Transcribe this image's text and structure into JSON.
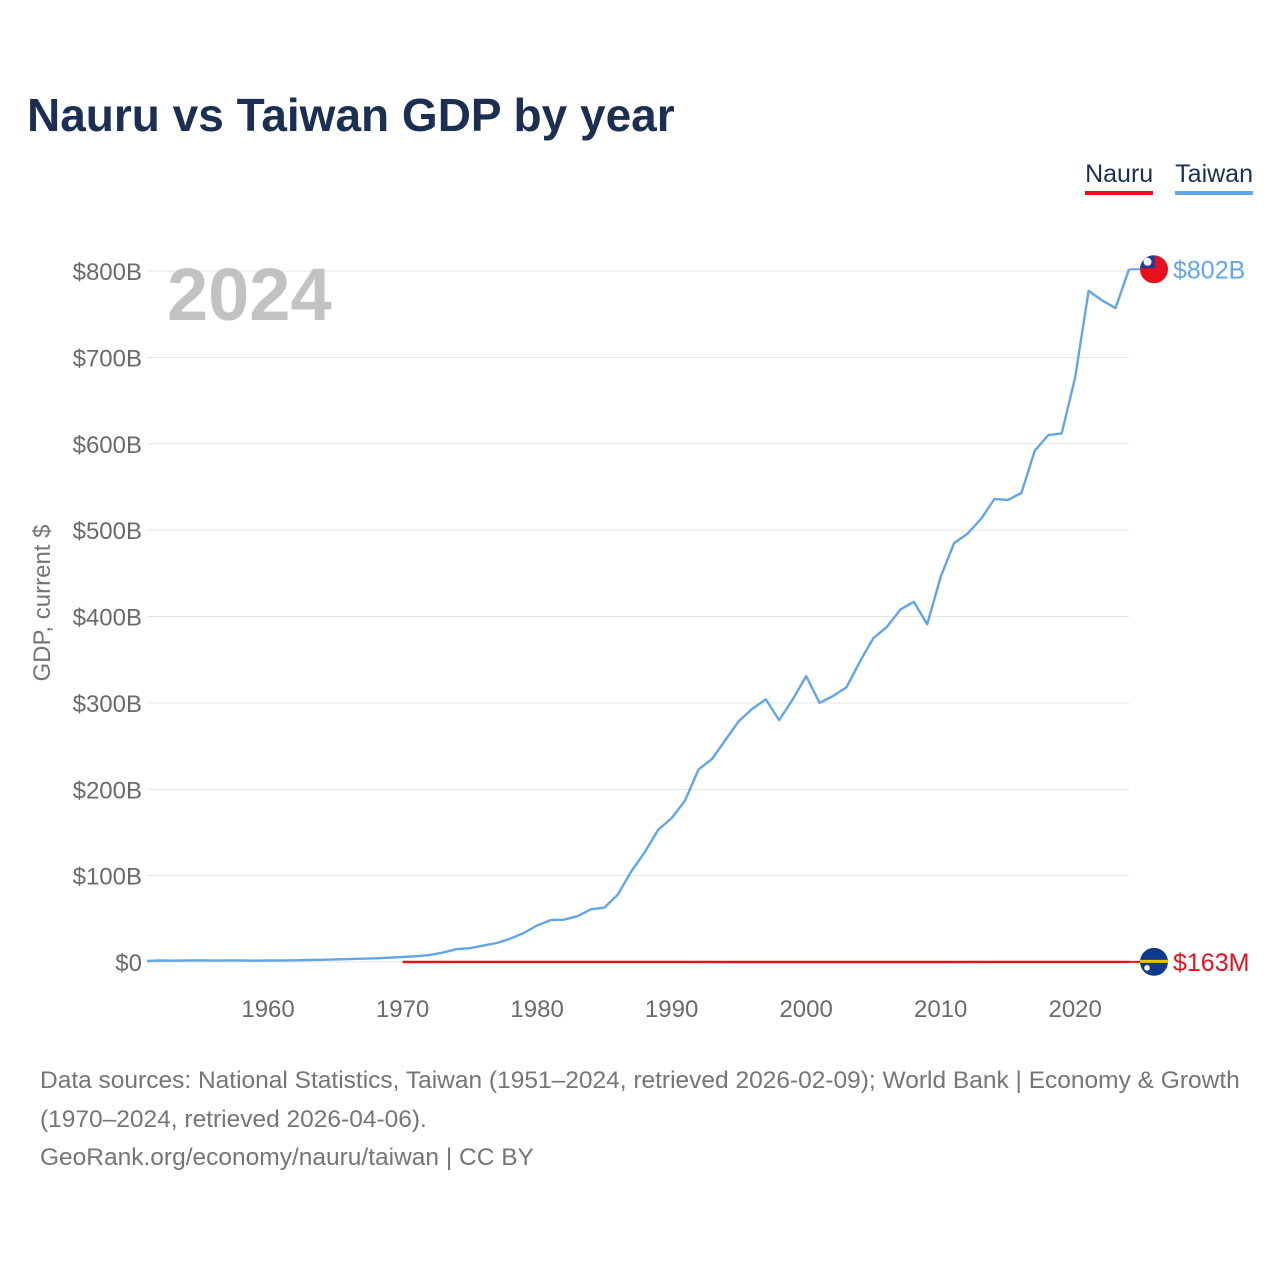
{
  "title": "Nauru vs Taiwan GDP by year",
  "legend": [
    {
      "label": "Nauru",
      "color": "#e8101c"
    },
    {
      "label": "Taiwan",
      "color": "#62a6e6"
    }
  ],
  "chart_data": {
    "type": "line",
    "title": "Nauru vs Taiwan GDP by year",
    "year_overlay": "2024",
    "xlabel": "",
    "ylabel": "GDP, current $",
    "xlim": [
      1951,
      2024
    ],
    "ylim": [
      0,
      800
    ],
    "y_unit": "billions of current US$",
    "x_ticks": [
      1960,
      1970,
      1980,
      1990,
      2000,
      2010,
      2020
    ],
    "y_ticks": [
      {
        "value": 0,
        "label": "$0"
      },
      {
        "value": 100,
        "label": "$100B"
      },
      {
        "value": 200,
        "label": "$200B"
      },
      {
        "value": 300,
        "label": "$300B"
      },
      {
        "value": 400,
        "label": "$400B"
      },
      {
        "value": 500,
        "label": "$500B"
      },
      {
        "value": 600,
        "label": "$600B"
      },
      {
        "value": 700,
        "label": "$700B"
      },
      {
        "value": 800,
        "label": "$800B"
      }
    ],
    "grid": "horizontal",
    "legend_position": "top-right",
    "series": [
      {
        "name": "Taiwan",
        "color": "#62a6e6",
        "end_label": "$802B",
        "flag": "taiwan-flag",
        "x": [
          1951,
          1952,
          1953,
          1954,
          1955,
          1956,
          1957,
          1958,
          1959,
          1960,
          1961,
          1962,
          1963,
          1964,
          1965,
          1966,
          1967,
          1968,
          1969,
          1970,
          1971,
          1972,
          1973,
          1974,
          1975,
          1976,
          1977,
          1978,
          1979,
          1980,
          1981,
          1982,
          1983,
          1984,
          1985,
          1986,
          1987,
          1988,
          1989,
          1990,
          1991,
          1992,
          1993,
          1994,
          1995,
          1996,
          1997,
          1998,
          1999,
          2000,
          2001,
          2002,
          2003,
          2004,
          2005,
          2006,
          2007,
          2008,
          2009,
          2010,
          2011,
          2012,
          2013,
          2014,
          2015,
          2016,
          2017,
          2018,
          2019,
          2020,
          2021,
          2022,
          2023,
          2024
        ],
        "y": [
          1.2,
          1.7,
          1.5,
          1.8,
          2.0,
          1.6,
          1.8,
          1.9,
          1.5,
          1.7,
          1.9,
          2.0,
          2.3,
          2.6,
          3.0,
          3.3,
          3.8,
          4.3,
          5.0,
          5.8,
          6.7,
          8.0,
          10.9,
          14.8,
          16.0,
          19.0,
          22.0,
          27.0,
          33.6,
          42.3,
          48.5,
          49.0,
          53.0,
          61.0,
          63.0,
          78.0,
          105.0,
          127.0,
          153.0,
          166.6,
          187.0,
          223.0,
          235.0,
          257.0,
          279.0,
          293.0,
          304.0,
          280.0,
          304.0,
          331.0,
          300.0,
          308.0,
          318.0,
          348.0,
          375.0,
          388.0,
          408.0,
          417.0,
          391.0,
          446.0,
          485.0,
          496.0,
          513.0,
          536.0,
          535.0,
          543.0,
          592.0,
          610.0,
          612.0,
          677.0,
          777.0,
          766.0,
          757.0,
          802.0
        ]
      },
      {
        "name": "Nauru",
        "color": "#e8101c",
        "end_label": "$163M",
        "flag": "nauru-flag",
        "x": [
          1970,
          1975,
          1980,
          1985,
          1990,
          1995,
          2000,
          2005,
          2010,
          2015,
          2020,
          2021,
          2022,
          2023,
          2024
        ],
        "y": [
          0.03,
          0.06,
          0.09,
          0.07,
          0.08,
          0.05,
          0.03,
          0.03,
          0.05,
          0.1,
          0.13,
          0.14,
          0.15,
          0.16,
          0.163
        ]
      }
    ]
  },
  "footer": {
    "sources": "Data sources: National Statistics, Taiwan (1951–2024, retrieved 2026-02-09); World Bank | Economy & Growth (1970–2024, retrieved 2026-04-06).",
    "credit": "GeoRank.org/economy/nauru/taiwan | CC BY"
  }
}
